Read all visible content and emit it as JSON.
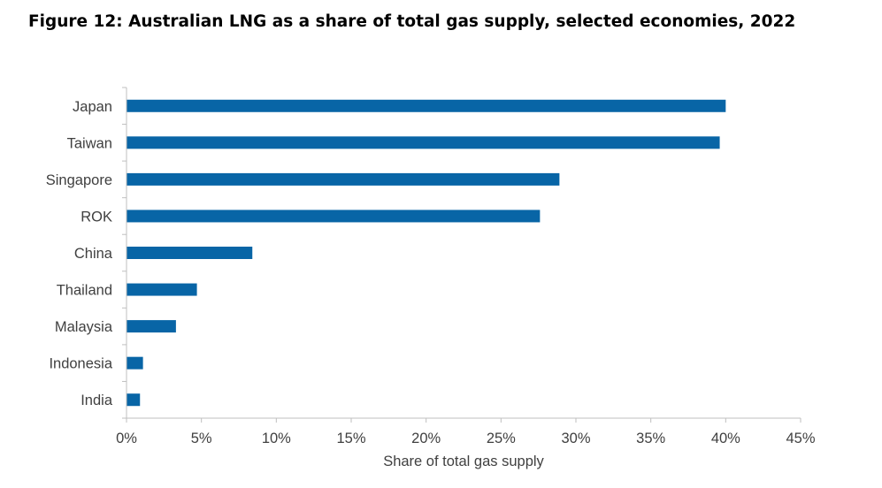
{
  "chart_data": {
    "type": "bar",
    "orientation": "horizontal",
    "title": "Figure 12: Australian LNG as a share of total gas supply, selected economies, 2022",
    "categories": [
      "Japan",
      "Taiwan",
      "Singapore",
      "ROK",
      "China",
      "Thailand",
      "Malaysia",
      "Indonesia",
      "India"
    ],
    "values": [
      40.0,
      39.6,
      28.9,
      27.6,
      8.4,
      4.7,
      3.3,
      1.1,
      0.9
    ],
    "unit": "%",
    "xlabel": "Share of total gas supply",
    "ylabel": "",
    "xlim": [
      0,
      45
    ],
    "xticks": [
      "0%",
      "5%",
      "10%",
      "15%",
      "20%",
      "25%",
      "30%",
      "35%",
      "40%",
      "45%"
    ],
    "grid": false,
    "legend": "none",
    "bar_color": "#0865A6",
    "axis_color": "#BFBFBF"
  }
}
